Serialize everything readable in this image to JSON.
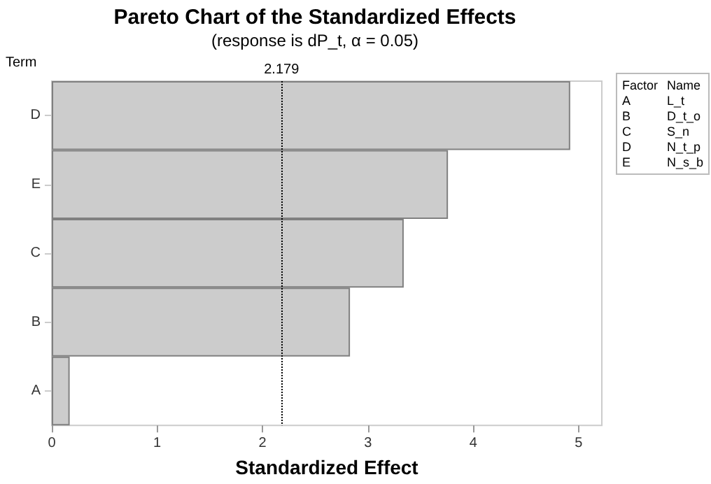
{
  "chart_data": {
    "type": "bar",
    "orientation": "horizontal",
    "title": "Pareto Chart of the Standardized Effects",
    "subtitle": "(response is dP_t, α = 0.05)",
    "xlabel": "Standardized Effect",
    "ylabel": "Term",
    "categories": [
      "D",
      "E",
      "C",
      "B",
      "A"
    ],
    "values": [
      4.92,
      3.76,
      3.34,
      2.83,
      0.17
    ],
    "color": "#cccccc",
    "xlim": [
      0,
      5.22
    ],
    "xticks": [
      0,
      1,
      2,
      3,
      4,
      5
    ],
    "ref_lines": [
      {
        "axis": "x",
        "value": 2.179,
        "label": "2.179",
        "line_style": "dotted",
        "color": "#000000"
      }
    ],
    "annotations": [
      "Factor",
      "Name",
      "A",
      "L_t",
      "B",
      "D_t_o",
      "C",
      "S_n",
      "D",
      "N_t_p",
      "E",
      "N_s_b"
    ],
    "grid": false
  }
}
